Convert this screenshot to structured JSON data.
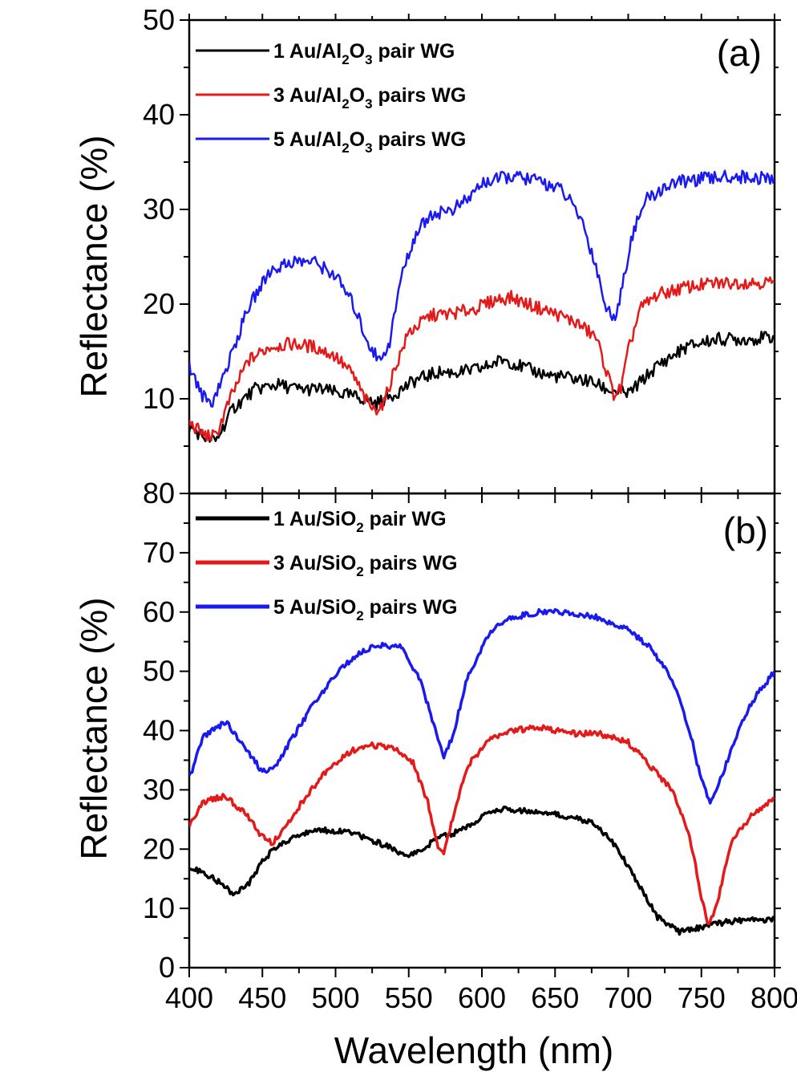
{
  "chart_data": [
    {
      "type": "line",
      "panel_label": "(a)",
      "xlabel": "Wavelength (nm)",
      "ylabel": "Reflectance (%)",
      "xlim": [
        400,
        800
      ],
      "ylim": [
        0,
        50
      ],
      "x_ticks": [
        400,
        450,
        500,
        550,
        600,
        650,
        700,
        750,
        800
      ],
      "y_ticks": [
        10,
        20,
        30,
        40,
        50
      ],
      "y_tick_labels": [
        "10",
        "20",
        "30",
        "40",
        "50"
      ],
      "grid": false,
      "legend_position": "top-left",
      "series": [
        {
          "name": "1 Au/Al2O3 pair WG",
          "legend": {
            "a": "1 Au/Al",
            "s1": "2",
            "b": "O",
            "s2": "3",
            "c": " pair WG"
          },
          "color": "#000000",
          "points": [
            [
              400,
              7.0
            ],
            [
              410,
              6.0
            ],
            [
              418,
              5.5
            ],
            [
              430,
              9.0
            ],
            [
              445,
              11.0
            ],
            [
              460,
              11.5
            ],
            [
              475,
              11.0
            ],
            [
              490,
              11.0
            ],
            [
              505,
              10.5
            ],
            [
              520,
              10.0
            ],
            [
              528,
              9.5
            ],
            [
              540,
              10.5
            ],
            [
              555,
              12.0
            ],
            [
              570,
              12.8
            ],
            [
              585,
              12.8
            ],
            [
              600,
              13.2
            ],
            [
              615,
              14.2
            ],
            [
              630,
              13.2
            ],
            [
              645,
              12.5
            ],
            [
              660,
              12.2
            ],
            [
              675,
              11.8
            ],
            [
              685,
              11.0
            ],
            [
              700,
              10.5
            ],
            [
              710,
              12.0
            ],
            [
              720,
              13.5
            ],
            [
              740,
              15.5
            ],
            [
              760,
              16.3
            ],
            [
              780,
              16.3
            ],
            [
              800,
              16.5
            ]
          ]
        },
        {
          "name": "3 Au/Al2O3 pairs WG",
          "legend": {
            "a": "3 Au/Al",
            "s1": "2",
            "b": "O",
            "s2": "3",
            "c": " pairs WG"
          },
          "color": "#e41a1a",
          "points": [
            [
              400,
              7.5
            ],
            [
              410,
              6.2
            ],
            [
              418,
              6.0
            ],
            [
              428,
              10.0
            ],
            [
              440,
              14.0
            ],
            [
              455,
              15.5
            ],
            [
              470,
              15.8
            ],
            [
              485,
              15.5
            ],
            [
              500,
              14.5
            ],
            [
              512,
              12.5
            ],
            [
              520,
              10.0
            ],
            [
              526,
              8.8
            ],
            [
              533,
              9.5
            ],
            [
              540,
              13.0
            ],
            [
              550,
              17.0
            ],
            [
              565,
              18.8
            ],
            [
              580,
              19.0
            ],
            [
              595,
              19.5
            ],
            [
              610,
              20.5
            ],
            [
              620,
              20.7
            ],
            [
              635,
              19.8
            ],
            [
              650,
              19.0
            ],
            [
              665,
              18.0
            ],
            [
              678,
              16.5
            ],
            [
              685,
              13.0
            ],
            [
              690,
              10.5
            ],
            [
              695,
              11.0
            ],
            [
              700,
              15.0
            ],
            [
              708,
              19.5
            ],
            [
              720,
              21.0
            ],
            [
              740,
              21.8
            ],
            [
              760,
              22.2
            ],
            [
              780,
              22.3
            ],
            [
              800,
              22.3
            ]
          ]
        },
        {
          "name": "5 Au/Al2O3 pairs WG",
          "legend": {
            "a": "5 Au/Al",
            "s1": "2",
            "b": "O",
            "s2": "3",
            "c": " pairs WG"
          },
          "color": "#1a1aee",
          "points": [
            [
              400,
              13.5
            ],
            [
              408,
              10.5
            ],
            [
              415,
              9.5
            ],
            [
              425,
              13.0
            ],
            [
              440,
              19.5
            ],
            [
              455,
              23.5
            ],
            [
              470,
              24.5
            ],
            [
              485,
              24.5
            ],
            [
              500,
              23.0
            ],
            [
              512,
              20.0
            ],
            [
              522,
              16.0
            ],
            [
              530,
              14.0
            ],
            [
              537,
              16.0
            ],
            [
              545,
              23.0
            ],
            [
              555,
              27.5
            ],
            [
              565,
              29.5
            ],
            [
              580,
              30.0
            ],
            [
              590,
              31.0
            ],
            [
              600,
              32.8
            ],
            [
              620,
              33.5
            ],
            [
              640,
              33.0
            ],
            [
              655,
              32.0
            ],
            [
              668,
              29.0
            ],
            [
              678,
              24.0
            ],
            [
              685,
              19.5
            ],
            [
              690,
              18.5
            ],
            [
              695,
              21.0
            ],
            [
              702,
              27.0
            ],
            [
              712,
              31.0
            ],
            [
              730,
              32.8
            ],
            [
              750,
              33.2
            ],
            [
              770,
              33.5
            ],
            [
              790,
              33.3
            ],
            [
              800,
              33.2
            ]
          ]
        }
      ]
    },
    {
      "type": "line",
      "panel_label": "(b)",
      "xlabel": "Wavelength (nm)",
      "ylabel": "Reflectance (%)",
      "xlim": [
        400,
        800
      ],
      "ylim": [
        0,
        80
      ],
      "x_ticks": [
        400,
        450,
        500,
        550,
        600,
        650,
        700,
        750,
        800
      ],
      "x_tick_labels": [
        "400",
        "450",
        "500",
        "550",
        "600",
        "650",
        "700",
        "750",
        "800"
      ],
      "y_ticks": [
        0,
        10,
        20,
        30,
        40,
        50,
        60,
        70,
        80
      ],
      "y_tick_labels": [
        "0",
        "10",
        "20",
        "30",
        "40",
        "50",
        "60",
        "70",
        "80"
      ],
      "grid": false,
      "legend_position": "top-left",
      "series": [
        {
          "name": "1 Au/SiO2 pair WG",
          "legend": {
            "a": "1 Au/SiO",
            "s1": "2",
            "c": " pair WG"
          },
          "color": "#000000",
          "points": [
            [
              400,
              17.0
            ],
            [
              410,
              16.0
            ],
            [
              420,
              14.5
            ],
            [
              430,
              12.5
            ],
            [
              440,
              14.0
            ],
            [
              450,
              18.0
            ],
            [
              460,
              20.5
            ],
            [
              475,
              22.5
            ],
            [
              490,
              23.2
            ],
            [
              505,
              23.0
            ],
            [
              520,
              22.0
            ],
            [
              535,
              20.5
            ],
            [
              550,
              18.8
            ],
            [
              560,
              20.0
            ],
            [
              570,
              22.0
            ],
            [
              585,
              23.0
            ],
            [
              600,
              25.5
            ],
            [
              615,
              26.8
            ],
            [
              630,
              26.5
            ],
            [
              645,
              26.0
            ],
            [
              660,
              25.5
            ],
            [
              675,
              24.5
            ],
            [
              690,
              21.0
            ],
            [
              705,
              15.0
            ],
            [
              720,
              8.5
            ],
            [
              735,
              6.0
            ],
            [
              745,
              6.5
            ],
            [
              760,
              7.5
            ],
            [
              780,
              8.0
            ],
            [
              800,
              8.2
            ]
          ]
        },
        {
          "name": "3 Au/SiO2 pairs WG",
          "legend": {
            "a": "3 Au/SiO",
            "s1": "2",
            "c": " pairs WG"
          },
          "color": "#e41a1a",
          "points": [
            [
              400,
              24.0
            ],
            [
              410,
              28.0
            ],
            [
              425,
              29.0
            ],
            [
              440,
              25.5
            ],
            [
              450,
              22.0
            ],
            [
              457,
              21.0
            ],
            [
              465,
              23.5
            ],
            [
              480,
              29.0
            ],
            [
              495,
              33.5
            ],
            [
              510,
              36.5
            ],
            [
              525,
              37.5
            ],
            [
              540,
              37.0
            ],
            [
              553,
              34.5
            ],
            [
              563,
              28.0
            ],
            [
              570,
              20.5
            ],
            [
              574,
              19.5
            ],
            [
              580,
              25.0
            ],
            [
              590,
              34.0
            ],
            [
              605,
              38.5
            ],
            [
              620,
              40.0
            ],
            [
              640,
              40.5
            ],
            [
              660,
              39.5
            ],
            [
              680,
              39.5
            ],
            [
              700,
              38.0
            ],
            [
              715,
              34.0
            ],
            [
              730,
              30.0
            ],
            [
              742,
              22.0
            ],
            [
              750,
              12.0
            ],
            [
              755,
              7.0
            ],
            [
              760,
              10.0
            ],
            [
              770,
              21.0
            ],
            [
              785,
              26.0
            ],
            [
              800,
              28.5
            ]
          ]
        },
        {
          "name": "5 Au/SiO2 pairs WG",
          "legend": {
            "a": "5 Au/SiO",
            "s1": "2",
            "c": " pairs WG"
          },
          "color": "#1a1aee",
          "points": [
            [
              400,
              32.0
            ],
            [
              410,
              39.0
            ],
            [
              425,
              41.5
            ],
            [
              440,
              36.5
            ],
            [
              450,
              33.0
            ],
            [
              458,
              33.5
            ],
            [
              470,
              38.5
            ],
            [
              485,
              44.5
            ],
            [
              500,
              49.5
            ],
            [
              515,
              53.0
            ],
            [
              530,
              54.5
            ],
            [
              545,
              54.0
            ],
            [
              557,
              49.0
            ],
            [
              566,
              42.0
            ],
            [
              574,
              35.5
            ],
            [
              580,
              39.0
            ],
            [
              590,
              49.0
            ],
            [
              605,
              56.5
            ],
            [
              620,
              59.0
            ],
            [
              640,
              60.0
            ],
            [
              660,
              60.0
            ],
            [
              680,
              59.0
            ],
            [
              700,
              57.0
            ],
            [
              715,
              54.0
            ],
            [
              730,
              48.5
            ],
            [
              742,
              40.0
            ],
            [
              750,
              31.5
            ],
            [
              756,
              28.0
            ],
            [
              762,
              31.0
            ],
            [
              772,
              38.0
            ],
            [
              785,
              45.0
            ],
            [
              800,
              50.0
            ]
          ]
        }
      ]
    }
  ]
}
